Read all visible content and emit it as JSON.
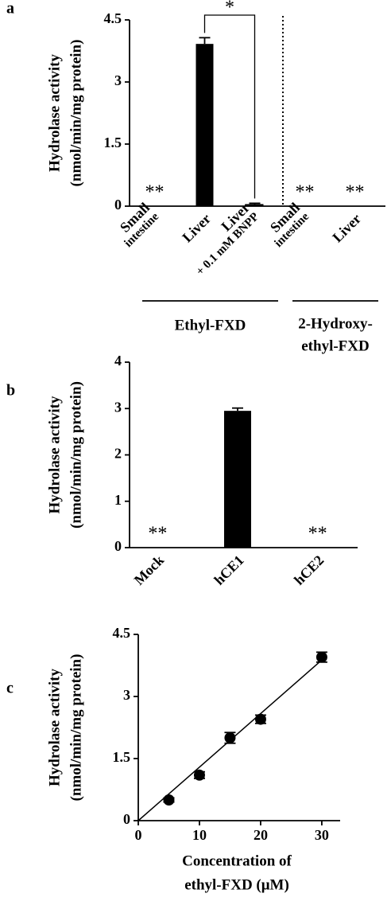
{
  "chart_data": [
    {
      "type": "bar",
      "panel": "a",
      "ylabel": [
        "Hydrolase activity",
        "(nmol/min/mg protein)"
      ],
      "categories": [
        [
          "Small",
          "intestine"
        ],
        [
          "Liver"
        ],
        [
          "Liver",
          "+ 0.1 mM BNPP"
        ],
        [
          "Small",
          "intestine"
        ],
        [
          "Liver"
        ]
      ],
      "values": [
        0,
        3.92,
        0.05,
        0,
        0
      ],
      "errors": [
        null,
        0.15,
        0.02,
        null,
        null
      ],
      "significance": [
        "**",
        null,
        null,
        "**",
        "**"
      ],
      "comparisons": [
        {
          "from": 1,
          "to": 2,
          "label": "*"
        }
      ],
      "groups": [
        {
          "label": [
            "Ethyl-FXD"
          ],
          "categories": [
            0,
            1,
            2
          ]
        },
        {
          "label": [
            "2-Hydroxy-",
            "ethyl-FXD"
          ],
          "categories": [
            3,
            4
          ]
        }
      ],
      "color": "#000000",
      "ylim": [
        0,
        4.5
      ],
      "yticks": [
        0,
        1.5,
        3,
        4.5
      ]
    },
    {
      "type": "bar",
      "panel": "b",
      "ylabel": [
        "Hydrolase activity",
        "(nmol/min/mg protein)"
      ],
      "categories": [
        [
          "Mock"
        ],
        [
          "hCE1"
        ],
        [
          "hCE2"
        ]
      ],
      "values": [
        0,
        2.95,
        0
      ],
      "errors": [
        null,
        0.06,
        null
      ],
      "significance": [
        "**",
        null,
        "**"
      ],
      "color": "#000000",
      "ylim": [
        0,
        4
      ],
      "yticks": [
        0,
        1,
        2,
        3,
        4
      ]
    },
    {
      "type": "scatter",
      "panel": "c",
      "ylabel": [
        "Hydrolase activity",
        "(nmol/min/mg protein)"
      ],
      "xlabel": [
        "Concentration of",
        "ethyl-FXD (μM)"
      ],
      "x": [
        5,
        10,
        15,
        20,
        30
      ],
      "values": [
        0.5,
        1.1,
        2.0,
        2.45,
        3.95
      ],
      "errors": [
        0.05,
        0.08,
        0.13,
        0.1,
        0.12
      ],
      "trendline": {
        "x": [
          0,
          30
        ],
        "values": [
          0,
          3.88
        ]
      },
      "color": "#000000",
      "xlim": [
        0,
        33
      ],
      "xticks": [
        0,
        10,
        20,
        30
      ],
      "ylim": [
        0,
        4.5
      ],
      "yticks": [
        0,
        1.5,
        3,
        4.5
      ]
    }
  ]
}
